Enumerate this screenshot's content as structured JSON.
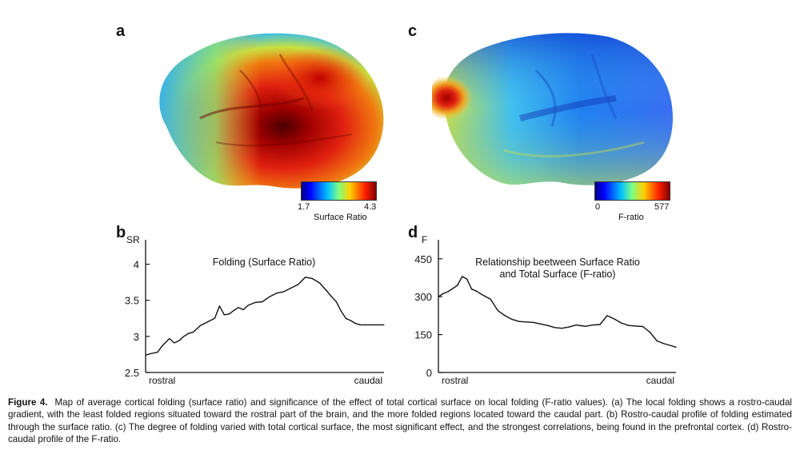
{
  "panels": {
    "a": {
      "letter": "a",
      "colorbar": {
        "min": "1.7",
        "max": "4.3",
        "label": "Surface Ratio"
      }
    },
    "c": {
      "letter": "c",
      "colorbar": {
        "min": "0",
        "max": "577",
        "label": "F-ratio"
      }
    },
    "b": {
      "letter": "b"
    },
    "d": {
      "letter": "d"
    }
  },
  "colors": {
    "line": "#111111",
    "jet": [
      "#00007f",
      "#0000ff",
      "#00a0ff",
      "#40ffc0",
      "#c0ff40",
      "#ffc000",
      "#ff2000",
      "#7f0000"
    ]
  },
  "chart_data": [
    {
      "id": "b",
      "type": "line",
      "title": "Folding (Surface Ratio)",
      "ylabel": "SR",
      "xlabel_left": "rostral",
      "xlabel_right": "caudal",
      "ylim": [
        2.5,
        4.25
      ],
      "yticks": [
        "2.5",
        "3",
        "3.5",
        "4"
      ],
      "ytick_values": [
        2.5,
        3,
        3.5,
        4
      ],
      "x": [
        0,
        0.02,
        0.05,
        0.07,
        0.1,
        0.12,
        0.14,
        0.16,
        0.18,
        0.2,
        0.23,
        0.26,
        0.29,
        0.31,
        0.33,
        0.35,
        0.37,
        0.39,
        0.41,
        0.43,
        0.46,
        0.49,
        0.52,
        0.55,
        0.58,
        0.61,
        0.64,
        0.67,
        0.7,
        0.73,
        0.76,
        0.78,
        0.8,
        0.82,
        0.84,
        0.86,
        0.88,
        0.9,
        0.92,
        0.94,
        0.96,
        0.98,
        1.0
      ],
      "y": [
        2.74,
        2.76,
        2.78,
        2.87,
        2.97,
        2.91,
        2.94,
        3.0,
        3.04,
        3.06,
        3.15,
        3.2,
        3.25,
        3.42,
        3.3,
        3.31,
        3.36,
        3.4,
        3.37,
        3.43,
        3.47,
        3.48,
        3.55,
        3.6,
        3.62,
        3.67,
        3.72,
        3.82,
        3.8,
        3.74,
        3.63,
        3.55,
        3.48,
        3.35,
        3.25,
        3.22,
        3.18,
        3.16,
        3.16,
        3.16,
        3.16,
        3.16,
        3.16
      ]
    },
    {
      "id": "d",
      "type": "line",
      "title": "Relationship beetween Surface Ratio",
      "title2": "and Total Surface (F-ratio)",
      "ylabel": "F",
      "xlabel_left": "rostral",
      "xlabel_right": "caudal",
      "ylim": [
        0,
        500
      ],
      "yticks": [
        "0",
        "150",
        "300",
        "450"
      ],
      "ytick_values": [
        0,
        150,
        300,
        450
      ],
      "x": [
        0,
        0.02,
        0.04,
        0.06,
        0.08,
        0.1,
        0.12,
        0.14,
        0.16,
        0.18,
        0.2,
        0.22,
        0.25,
        0.28,
        0.31,
        0.34,
        0.37,
        0.4,
        0.43,
        0.46,
        0.49,
        0.52,
        0.55,
        0.58,
        0.6,
        0.62,
        0.65,
        0.68,
        0.71,
        0.74,
        0.77,
        0.8,
        0.83,
        0.86,
        0.89,
        0.92,
        0.95,
        0.98,
        1.0
      ],
      "y": [
        300,
        312,
        320,
        332,
        345,
        380,
        370,
        330,
        322,
        310,
        300,
        290,
        245,
        225,
        210,
        202,
        200,
        198,
        192,
        186,
        178,
        175,
        180,
        188,
        185,
        183,
        188,
        190,
        225,
        212,
        196,
        186,
        184,
        182,
        160,
        125,
        114,
        106,
        100
      ]
    }
  ],
  "caption": {
    "fig_label": "Figure 4.",
    "text": "Map of average cortical folding (surface ratio) and significance of the effect of total cortical surface on local folding (F-ratio values). (a) The local folding shows a rostro-caudal gradient, with the least folded regions situated toward the rostral part of the brain, and the more folded regions located toward the caudal part. (b) Rostro-caudal profile of folding estimated through the surface ratio. (c) The degree of folding varied with total cortical surface, the most significant effect, and the strongest correlations, being found in the prefrontal cortex. (d) Rostro-caudal profile of the F-ratio."
  }
}
